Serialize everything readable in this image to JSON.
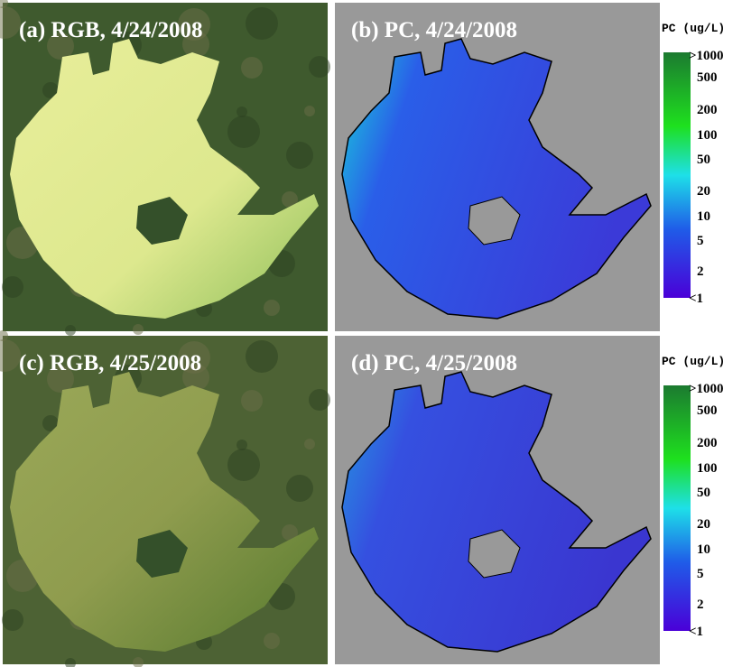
{
  "panels": [
    {
      "title": "(a) RGB, 4/24/2008"
    },
    {
      "title": "(b) PC, 4/24/2008"
    },
    {
      "title": "(c) RGB, 4/25/2008"
    },
    {
      "title": "(d) PC, 4/25/2008"
    }
  ],
  "colorbars": [
    {
      "title": "PC (ug/L)",
      "labels": [
        ">1000",
        "500",
        "200",
        "100",
        "50",
        "20",
        "10",
        "5",
        "2",
        "<1"
      ]
    },
    {
      "title": "PC (ug/L)",
      "labels": [
        ">1000",
        "500",
        "200",
        "100",
        "50",
        "20",
        "10",
        "5",
        "2",
        "<1"
      ]
    }
  ]
}
